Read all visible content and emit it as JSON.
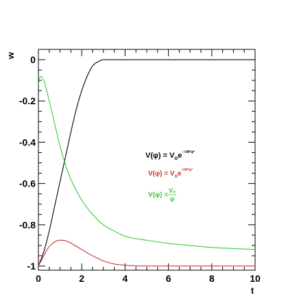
{
  "chart_data": {
    "type": "line",
    "title": "",
    "xlabel": "t",
    "ylabel": "w",
    "xlim": [
      0,
      10
    ],
    "ylim": [
      -1.02,
      0.05
    ],
    "grid": false,
    "x_ticks": [
      0,
      2,
      4,
      6,
      8,
      10
    ],
    "x_tick_labels": [
      "0",
      "2",
      "4",
      "6",
      "8",
      "10"
    ],
    "y_ticks": [
      0,
      -0.2,
      -0.4,
      -0.6,
      -0.8,
      -1
    ],
    "y_tick_labels": [
      "0",
      "-0.2",
      "-0.4",
      "-0.6",
      "-0.8",
      "-1"
    ],
    "legend": {
      "placement": "center-right",
      "entries": [
        {
          "series_index": 0,
          "text": "V(φ) = V",
          "sub": "o",
          "mid": "e",
          "sup": "-½M²φ²"
        },
        {
          "series_index": 1,
          "text": "V(φ) = V",
          "sub": "o",
          "mid": "e",
          "sup": "½M²φ²"
        },
        {
          "series_index": 2,
          "text": "V(φ) = ",
          "num": "V₀",
          "den": "φ"
        }
      ]
    },
    "series": [
      {
        "color": "#000000",
        "x": [
          0,
          0.25,
          0.5,
          0.75,
          1.0,
          1.25,
          1.5,
          1.75,
          2.0,
          2.25,
          2.5,
          2.75,
          3.0,
          3.25,
          3.5,
          4,
          5,
          6,
          7,
          8,
          9,
          10
        ],
        "y": [
          -1.0,
          -0.93,
          -0.83,
          -0.71,
          -0.59,
          -0.47,
          -0.35,
          -0.24,
          -0.15,
          -0.08,
          -0.03,
          -0.01,
          0.0,
          0.0,
          0.0,
          0.0,
          0.0,
          0.0,
          0.0,
          0.0,
          0.0,
          0.0
        ]
      },
      {
        "color": "#cc3333",
        "x": [
          0,
          0.2,
          0.4,
          0.6,
          0.8,
          1.0,
          1.2,
          1.4,
          1.6,
          2.0,
          2.5,
          3.0,
          3.5,
          4,
          5,
          6,
          7,
          8,
          9,
          10
        ],
        "y": [
          -1.0,
          -0.96,
          -0.92,
          -0.895,
          -0.88,
          -0.875,
          -0.876,
          -0.883,
          -0.895,
          -0.92,
          -0.95,
          -0.975,
          -0.99,
          -0.996,
          -1.0,
          -1.0,
          -1.0,
          -1.0,
          -1.0,
          -1.0
        ]
      },
      {
        "color": "#33cc33",
        "x": [
          0,
          0.1,
          0.25,
          0.5,
          0.75,
          1.0,
          1.25,
          1.5,
          2.0,
          2.5,
          3.0,
          3.5,
          4,
          5,
          6,
          7,
          8,
          9,
          10
        ],
        "y": [
          -0.12,
          -0.08,
          -0.1,
          -0.2,
          -0.31,
          -0.42,
          -0.51,
          -0.58,
          -0.68,
          -0.75,
          -0.8,
          -0.83,
          -0.855,
          -0.875,
          -0.89,
          -0.9,
          -0.91,
          -0.915,
          -0.92
        ]
      }
    ]
  }
}
